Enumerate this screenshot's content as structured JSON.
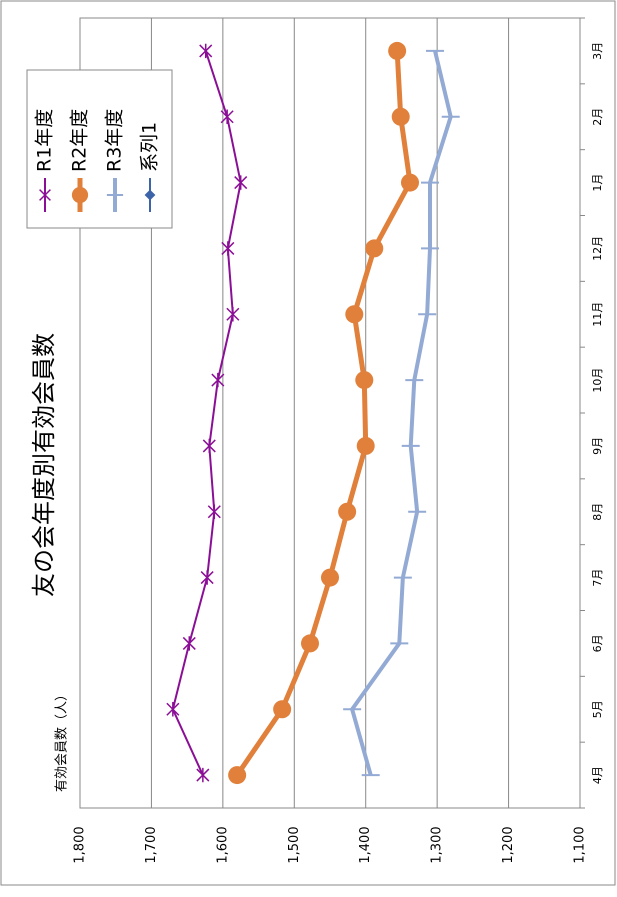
{
  "chart_data": {
    "type": "line",
    "title": "友の会年度別有効会員数",
    "y_axis_label": "有効会員数（人）",
    "categories": [
      "4月",
      "5月",
      "6月",
      "7月",
      "8月",
      "9月",
      "10月",
      "11月",
      "12月",
      "1月",
      "2月",
      "3月"
    ],
    "series": [
      {
        "name": "R1年度",
        "color": "#8b0f96",
        "marker": "star",
        "values": [
          1628,
          1670,
          1647,
          1622,
          1612,
          1619,
          1607,
          1586,
          1593,
          1575,
          1594,
          1624
        ]
      },
      {
        "name": "R2年度",
        "color": "#e0803a",
        "marker": "circle",
        "values": [
          1580,
          1517,
          1478,
          1450,
          1426,
          1400,
          1402,
          1416,
          1388,
          1338,
          1351,
          1356
        ]
      },
      {
        "name": "R3年度",
        "color": "#93aad4",
        "marker": "plus",
        "values": [
          1393,
          1419,
          1353,
          1348,
          1328,
          1337,
          1332,
          1314,
          1310,
          1310,
          1281,
          1303
        ]
      },
      {
        "name": "系列1",
        "color": "#3d64a8",
        "marker": "diamond",
        "values": [
          null,
          null,
          null,
          null,
          null,
          null,
          null,
          null,
          null,
          null,
          null,
          null
        ]
      }
    ],
    "ylim": [
      1100,
      1800
    ],
    "yticks": [
      {
        "value": 1100,
        "label": "1,100"
      },
      {
        "value": 1200,
        "label": "1,200"
      },
      {
        "value": 1300,
        "label": "1,300"
      },
      {
        "value": 1400,
        "label": "1,400"
      },
      {
        "value": 1500,
        "label": "1,500"
      },
      {
        "value": 1600,
        "label": "1,600"
      },
      {
        "value": 1700,
        "label": "1,700"
      },
      {
        "value": 1800,
        "label": "1,800"
      }
    ],
    "grid": true
  }
}
